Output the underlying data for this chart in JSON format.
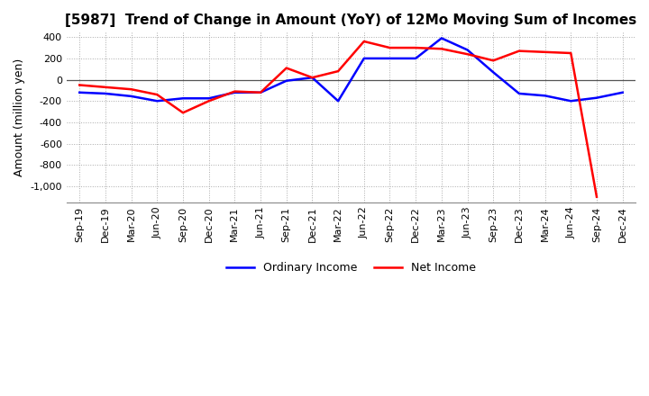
{
  "title": "[5987]  Trend of Change in Amount (YoY) of 12Mo Moving Sum of Incomes",
  "ylabel": "Amount (million yen)",
  "ylim": [
    -1150,
    450
  ],
  "yticks": [
    400,
    200,
    0,
    -200,
    -400,
    -600,
    -800,
    -1000
  ],
  "x_labels": [
    "Sep-19",
    "Dec-19",
    "Mar-20",
    "Jun-20",
    "Sep-20",
    "Dec-20",
    "Mar-21",
    "Jun-21",
    "Sep-21",
    "Dec-21",
    "Mar-22",
    "Jun-22",
    "Sep-22",
    "Dec-22",
    "Mar-23",
    "Jun-23",
    "Sep-23",
    "Dec-23",
    "Mar-24",
    "Jun-24",
    "Sep-24",
    "Dec-24"
  ],
  "ordinary_income": [
    -120,
    -130,
    -155,
    -200,
    -175,
    -175,
    -120,
    -120,
    -10,
    20,
    -200,
    200,
    200,
    200,
    390,
    280,
    70,
    -130,
    -150,
    -200,
    -170,
    -120
  ],
  "net_income": [
    -50,
    -70,
    -90,
    -140,
    -310,
    -200,
    -110,
    -120,
    110,
    20,
    80,
    360,
    300,
    300,
    290,
    240,
    180,
    270,
    260,
    250,
    -1100,
    null
  ],
  "ordinary_color": "#0000ff",
  "net_color": "#ff0000",
  "legend_ordinary": "Ordinary Income",
  "legend_net": "Net Income",
  "background_color": "#ffffff",
  "grid_color": "#aaaaaa",
  "title_fontsize": 11,
  "axis_fontsize": 9,
  "tick_fontsize": 8
}
